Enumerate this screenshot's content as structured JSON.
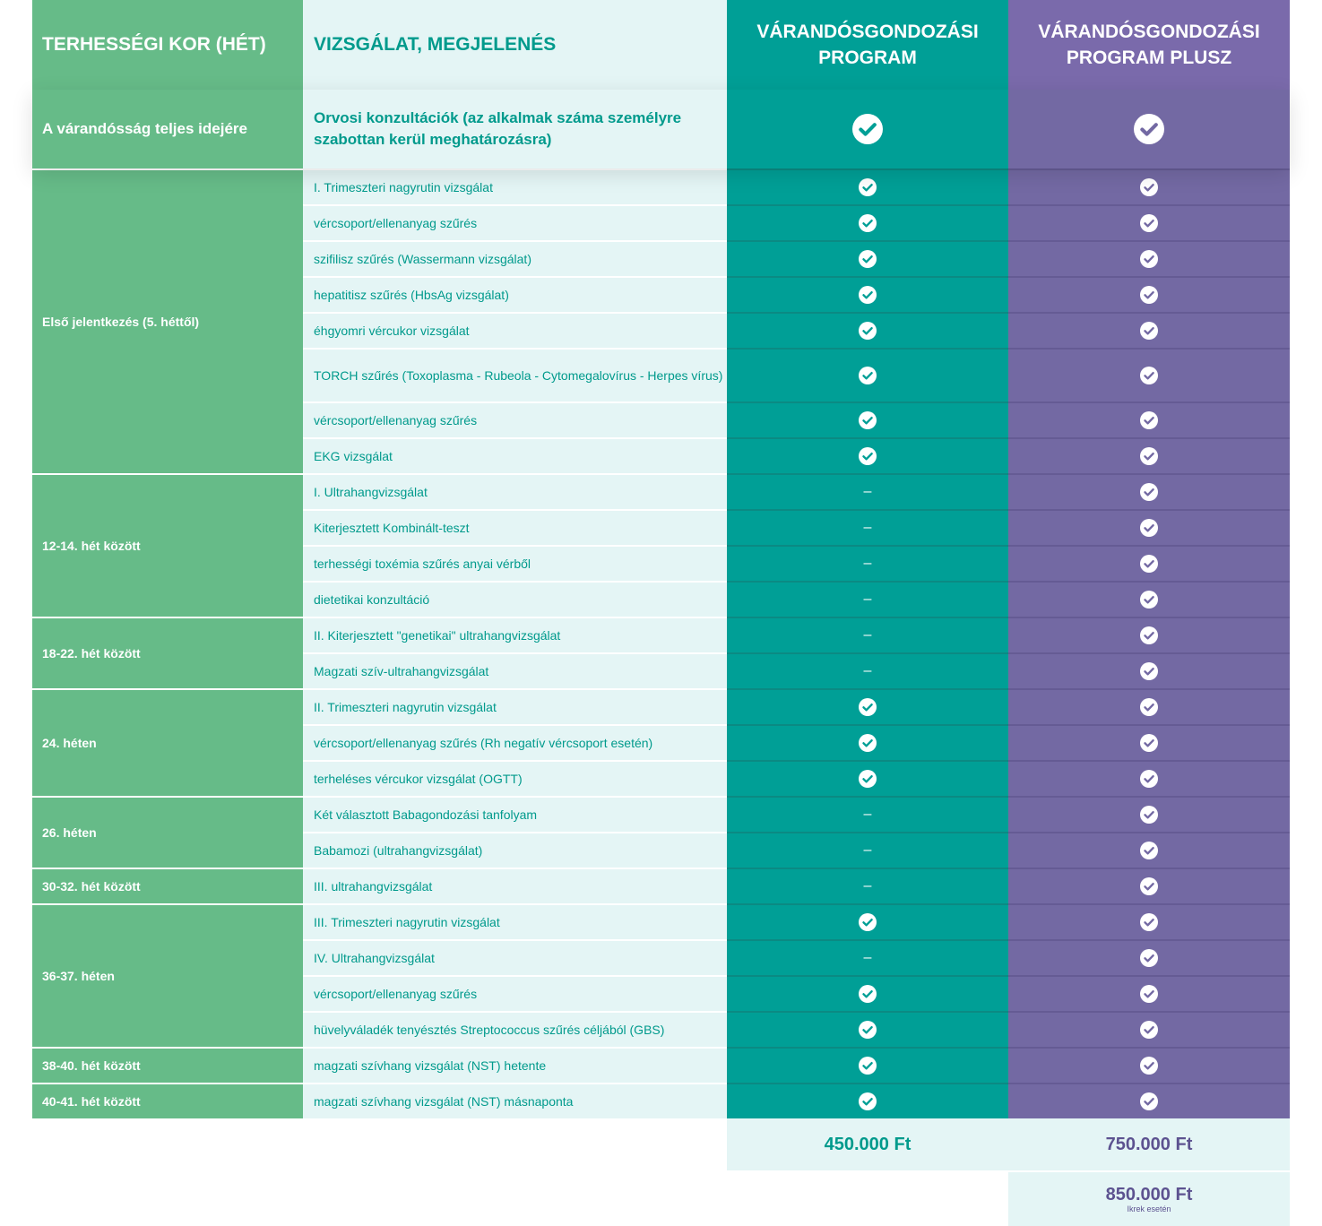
{
  "header": {
    "col_age": "TERHESSÉGI KOR (HÉT)",
    "col_exam": "VIZSGÁLAT, MEGJELENÉS",
    "col_program": "VÁRANDÓSGONDOZÁSI PROGRAM",
    "col_program_plus": "VÁRANDÓSGONDOZÁSI PROGRAM PLUSZ"
  },
  "consultation": {
    "age": "A várandósság teljes idejére",
    "exam": "Orvosi konzultációk (az alkalmak száma személyre szabottan kerül meghatározásra)",
    "program": "check",
    "plus": "check"
  },
  "groups": [
    {
      "label": "Első jelentkezés (5. héttől)",
      "items": [
        {
          "exam": "I. Trimeszteri nagyrutin vizsgálat",
          "program": "check",
          "plus": "check"
        },
        {
          "exam": "vércsoport/ellenanyag szűrés",
          "program": "check",
          "plus": "check"
        },
        {
          "exam": "szifilisz szűrés (Wassermann vizsgálat)",
          "program": "check",
          "plus": "check"
        },
        {
          "exam": "hepatitisz szűrés (HbsAg vizsgálat)",
          "program": "check",
          "plus": "check"
        },
        {
          "exam": "éhgyomri vércukor vizsgálat",
          "program": "check",
          "plus": "check"
        },
        {
          "exam": "TORCH szűrés (Toxoplasma - Rubeola - Cytomegalovírus - Herpes vírus)",
          "program": "check",
          "plus": "check",
          "tall": true
        },
        {
          "exam": "vércsoport/ellenanyag szűrés",
          "program": "check",
          "plus": "check"
        },
        {
          "exam": "EKG vizsgálat",
          "program": "check",
          "plus": "check"
        }
      ]
    },
    {
      "label": "12-14. hét között",
      "items": [
        {
          "exam": "I. Ultrahangvizsgálat",
          "program": "dash",
          "plus": "check"
        },
        {
          "exam": "Kiterjesztett Kombinált-teszt",
          "program": "dash",
          "plus": "check"
        },
        {
          "exam": "terhességi toxémia szűrés anyai vérből",
          "program": "dash",
          "plus": "check"
        },
        {
          "exam": "dietetikai konzultáció",
          "program": "dash",
          "plus": "check"
        }
      ]
    },
    {
      "label": "18-22. hét között",
      "items": [
        {
          "exam": "II. Kiterjesztett \"genetikai\" ultrahangvizsgálat",
          "program": "dash",
          "plus": "check"
        },
        {
          "exam": "Magzati szív-ultrahangvizsgálat",
          "program": "dash",
          "plus": "check"
        }
      ]
    },
    {
      "label": "24. héten",
      "items": [
        {
          "exam": "II. Trimeszteri nagyrutin vizsgálat",
          "program": "check",
          "plus": "check"
        },
        {
          "exam": "vércsoport/ellenanyag szűrés (Rh negatív vércsoport esetén)",
          "program": "check",
          "plus": "check"
        },
        {
          "exam": "terheléses vércukor vizsgálat (OGTT)",
          "program": "check",
          "plus": "check"
        }
      ]
    },
    {
      "label": "26. héten",
      "items": [
        {
          "exam": "Két választott Babagondozási tanfolyam",
          "program": "dash",
          "plus": "check"
        },
        {
          "exam": "Babamozi (ultrahangvizsgálat)",
          "program": "dash",
          "plus": "check"
        }
      ]
    },
    {
      "label": "30-32. hét között",
      "items": [
        {
          "exam": "III. ultrahangvizsgálat",
          "program": "dash",
          "plus": "check"
        }
      ]
    },
    {
      "label": "36-37. héten",
      "items": [
        {
          "exam": "III. Trimeszteri nagyrutin vizsgálat",
          "program": "check",
          "plus": "check"
        },
        {
          "exam": "IV. Ultrahangvizsgálat",
          "program": "dash",
          "plus": "check"
        },
        {
          "exam": "vércsoport/ellenanyag szűrés",
          "program": "check",
          "plus": "check"
        },
        {
          "exam": "hüvelyváladék tenyésztés Streptococcus szűrés céljából (GBS)",
          "program": "check",
          "plus": "check"
        }
      ]
    },
    {
      "label": "38-40. hét között",
      "items": [
        {
          "exam": "magzati szívhang vizsgálat (NST) hetente",
          "program": "check",
          "plus": "check"
        }
      ]
    },
    {
      "label": "40-41. hét között",
      "items": [
        {
          "exam": "magzati szívhang vizsgálat (NST) másnaponta",
          "program": "check",
          "plus": "check"
        }
      ]
    }
  ],
  "prices": {
    "program": "450.000 Ft",
    "plus": "750.000 Ft",
    "plus_twins": "850.000 Ft",
    "plus_twins_note": "Ikrek esetén"
  },
  "colors": {
    "green": "#66bb88",
    "light": "#e4f5f5",
    "teal": "#009f96",
    "purple": "#7369a3"
  },
  "icons": {
    "included": "check-circle-icon",
    "not_included": "dash-icon"
  }
}
